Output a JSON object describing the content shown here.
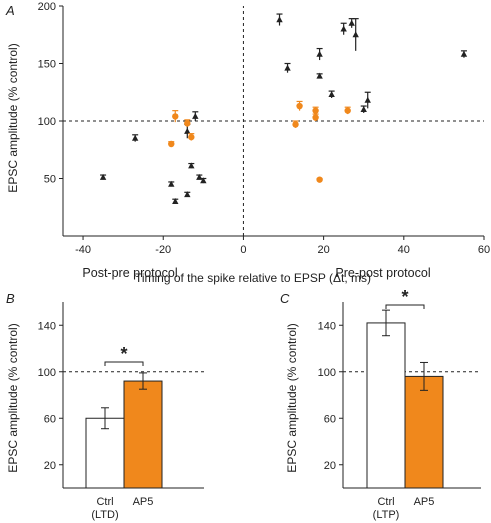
{
  "colors": {
    "ap5": "#f0881c",
    "ctrl": "#ffffff",
    "black": "#222222"
  },
  "chart_data": [
    {
      "panel": "A",
      "type": "scatter",
      "xlabel": "Timing of the spike relative to EPSP (Δt, ms)",
      "ylabel": "EPSC amplitude (% control)",
      "xlim": [
        -45,
        60
      ],
      "ylim": [
        0,
        200
      ],
      "xticks": [
        "-40",
        "-20",
        "0",
        "20",
        "40",
        "60"
      ],
      "yticks": [
        "50",
        "100",
        "150",
        "200"
      ],
      "reference_lines": {
        "x": 0,
        "y": 100
      },
      "series": [
        {
          "key": "ctrl",
          "marker": "triangle",
          "color": "#222222",
          "points": [
            {
              "x": -35,
              "y": 51,
              "err": 2
            },
            {
              "x": -27,
              "y": 85,
              "err": 3
            },
            {
              "x": -18,
              "y": 45,
              "err": 2
            },
            {
              "x": -17,
              "y": 30,
              "err": 2
            },
            {
              "x": -14,
              "y": 36,
              "err": 2
            },
            {
              "x": -14,
              "y": 91,
              "err": 6
            },
            {
              "x": -13,
              "y": 61,
              "err": 2
            },
            {
              "x": -12,
              "y": 104,
              "err": 4
            },
            {
              "x": -11,
              "y": 51,
              "err": 2
            },
            {
              "x": -10,
              "y": 48,
              "err": 2
            },
            {
              "x": 9,
              "y": 188,
              "err": 5
            },
            {
              "x": 11,
              "y": 146,
              "err": 4
            },
            {
              "x": 19,
              "y": 158,
              "err": 5
            },
            {
              "x": 19,
              "y": 139,
              "err": 2
            },
            {
              "x": 22,
              "y": 123,
              "err": 3
            },
            {
              "x": 25,
              "y": 180,
              "err": 5
            },
            {
              "x": 27,
              "y": 185,
              "err": 4
            },
            {
              "x": 28,
              "y": 175,
              "err": 14
            },
            {
              "x": 30,
              "y": 110,
              "err": 3
            },
            {
              "x": 31,
              "y": 118,
              "err": 7
            },
            {
              "x": 55,
              "y": 158,
              "err": 3
            }
          ]
        },
        {
          "key": "ap5",
          "marker": "circle",
          "color": "#f0881c",
          "points": [
            {
              "x": -18,
              "y": 80,
              "err": 2
            },
            {
              "x": -17,
              "y": 104,
              "err": 5
            },
            {
              "x": -14,
              "y": 98,
              "err": 3
            },
            {
              "x": -13,
              "y": 86,
              "err": 3
            },
            {
              "x": 13,
              "y": 97,
              "err": 3
            },
            {
              "x": 14,
              "y": 113,
              "err": 4
            },
            {
              "x": 18,
              "y": 103,
              "err": 3
            },
            {
              "x": 18,
              "y": 109,
              "err": 3
            },
            {
              "x": 19,
              "y": 49,
              "err": 1
            },
            {
              "x": 26,
              "y": 109,
              "err": 3
            }
          ]
        }
      ]
    },
    {
      "panel": "B",
      "type": "bar",
      "title": "Post-pre protocol",
      "ylabel": "EPSC amplitude (% control)",
      "ylim": [
        0,
        160
      ],
      "yticks": [
        "20",
        "60",
        "100",
        "140"
      ],
      "categories": [
        [
          "Ctrl",
          "(LTD)"
        ],
        [
          "AP5"
        ]
      ],
      "values": [
        60,
        92
      ],
      "errors": [
        9,
        7
      ],
      "fills": [
        "#ffffff",
        "#f0881c"
      ],
      "reference_line": 100,
      "significance": "*"
    },
    {
      "panel": "C",
      "type": "bar",
      "title": "Pre-post protocol",
      "ylabel": "EPSC amplitude (% control)",
      "ylim": [
        0,
        160
      ],
      "yticks": [
        "20",
        "60",
        "100",
        "140"
      ],
      "categories": [
        [
          "Ctrl",
          "(LTP)"
        ],
        [
          "AP5"
        ]
      ],
      "values": [
        142,
        96
      ],
      "errors": [
        11,
        12
      ],
      "fills": [
        "#ffffff",
        "#f0881c"
      ],
      "reference_line": 100,
      "significance": "*"
    }
  ]
}
